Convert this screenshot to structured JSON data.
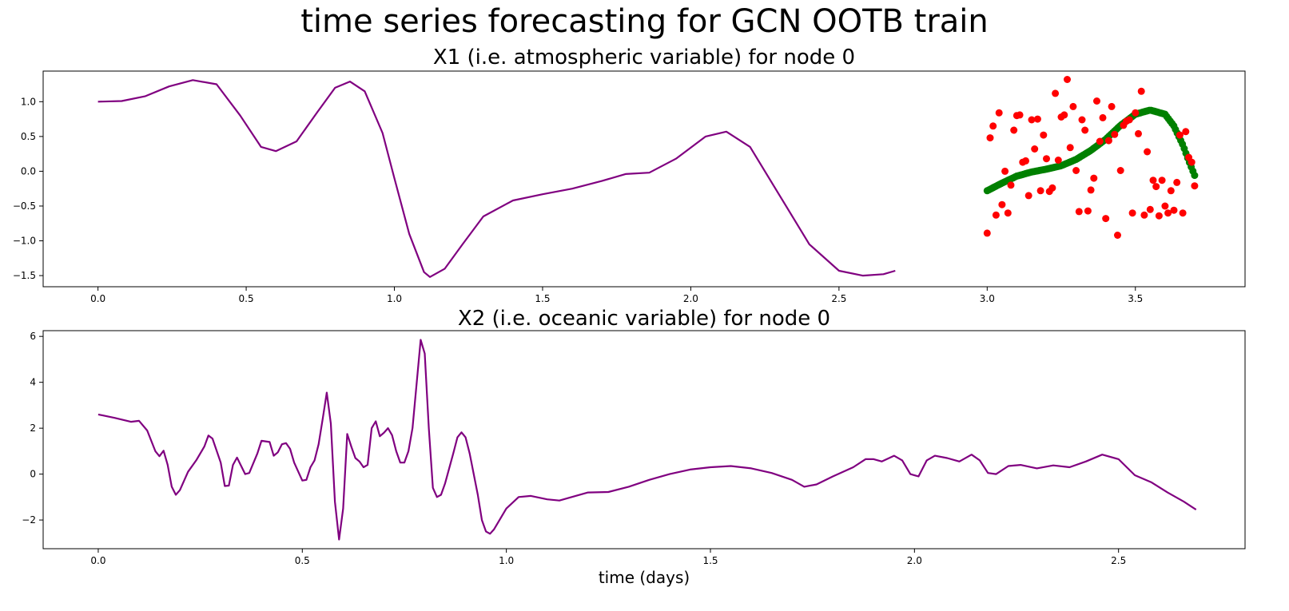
{
  "figure": {
    "title": "time series forecasting for GCN OOTB train"
  },
  "chart_data": [
    {
      "type": "line+scatter",
      "title": "X1 (i.e. atmospheric variable) for node 0",
      "xlabel": "",
      "ylabel": "",
      "xlim": [
        -0.185,
        3.87
      ],
      "ylim": [
        -1.66,
        1.44
      ],
      "xticks": [
        0.0,
        0.5,
        1.0,
        1.5,
        2.0,
        2.5,
        3.0,
        3.5
      ],
      "yticks": [
        -1.5,
        -1.0,
        -0.5,
        0.0,
        0.5,
        1.0
      ],
      "grid": false,
      "colors": {
        "line": "#800080",
        "prediction": "#008000",
        "truth": "#ff0000"
      },
      "line_keypoints": [
        [
          0.0,
          1.0
        ],
        [
          0.08,
          1.01
        ],
        [
          0.16,
          1.08
        ],
        [
          0.24,
          1.22
        ],
        [
          0.32,
          1.31
        ],
        [
          0.4,
          1.25
        ],
        [
          0.48,
          0.8
        ],
        [
          0.55,
          0.35
        ],
        [
          0.6,
          0.29
        ],
        [
          0.67,
          0.43
        ],
        [
          0.74,
          0.85
        ],
        [
          0.8,
          1.2
        ],
        [
          0.85,
          1.29
        ],
        [
          0.9,
          1.15
        ],
        [
          0.96,
          0.55
        ],
        [
          1.0,
          -0.1
        ],
        [
          1.05,
          -0.9
        ],
        [
          1.1,
          -1.45
        ],
        [
          1.12,
          -1.52
        ],
        [
          1.17,
          -1.4
        ],
        [
          1.23,
          -1.05
        ],
        [
          1.3,
          -0.65
        ],
        [
          1.4,
          -0.42
        ],
        [
          1.5,
          -0.33
        ],
        [
          1.6,
          -0.25
        ],
        [
          1.7,
          -0.14
        ],
        [
          1.78,
          -0.04
        ],
        [
          1.86,
          -0.02
        ],
        [
          1.95,
          0.18
        ],
        [
          2.05,
          0.5
        ],
        [
          2.12,
          0.57
        ],
        [
          2.2,
          0.35
        ],
        [
          2.3,
          -0.35
        ],
        [
          2.4,
          -1.05
        ],
        [
          2.5,
          -1.43
        ],
        [
          2.58,
          -1.5
        ],
        [
          2.65,
          -1.48
        ],
        [
          2.69,
          -1.43
        ]
      ],
      "prediction_keypoints": [
        [
          3.0,
          -0.28
        ],
        [
          3.05,
          -0.17
        ],
        [
          3.1,
          -0.07
        ],
        [
          3.15,
          -0.01
        ],
        [
          3.2,
          0.03
        ],
        [
          3.25,
          0.08
        ],
        [
          3.3,
          0.17
        ],
        [
          3.35,
          0.3
        ],
        [
          3.4,
          0.46
        ],
        [
          3.45,
          0.66
        ],
        [
          3.5,
          0.82
        ],
        [
          3.55,
          0.88
        ],
        [
          3.6,
          0.82
        ],
        [
          3.63,
          0.65
        ],
        [
          3.66,
          0.38
        ],
        [
          3.68,
          0.15
        ],
        [
          3.7,
          -0.06
        ]
      ],
      "prediction_points": 120,
      "truth_points": [
        [
          3.0,
          -0.89
        ],
        [
          3.01,
          0.48
        ],
        [
          3.02,
          0.65
        ],
        [
          3.03,
          -0.63
        ],
        [
          3.04,
          0.84
        ],
        [
          3.05,
          -0.48
        ],
        [
          3.06,
          0.0
        ],
        [
          3.07,
          -0.6
        ],
        [
          3.08,
          -0.2
        ],
        [
          3.09,
          0.59
        ],
        [
          3.1,
          0.8
        ],
        [
          3.11,
          0.81
        ],
        [
          3.12,
          0.13
        ],
        [
          3.13,
          0.15
        ],
        [
          3.14,
          -0.35
        ],
        [
          3.15,
          0.74
        ],
        [
          3.16,
          0.32
        ],
        [
          3.17,
          0.75
        ],
        [
          3.18,
          -0.28
        ],
        [
          3.19,
          0.52
        ],
        [
          3.2,
          0.18
        ],
        [
          3.21,
          -0.29
        ],
        [
          3.22,
          -0.24
        ],
        [
          3.23,
          1.12
        ],
        [
          3.24,
          0.16
        ],
        [
          3.25,
          0.78
        ],
        [
          3.26,
          0.81
        ],
        [
          3.27,
          1.32
        ],
        [
          3.28,
          0.34
        ],
        [
          3.29,
          0.93
        ],
        [
          3.3,
          0.01
        ],
        [
          3.31,
          -0.58
        ],
        [
          3.32,
          0.74
        ],
        [
          3.33,
          0.59
        ],
        [
          3.34,
          -0.57
        ],
        [
          3.35,
          -0.27
        ],
        [
          3.36,
          -0.1
        ],
        [
          3.37,
          1.01
        ],
        [
          3.38,
          0.43
        ],
        [
          3.39,
          0.77
        ],
        [
          3.4,
          -0.68
        ],
        [
          3.41,
          0.44
        ],
        [
          3.42,
          0.93
        ],
        [
          3.43,
          0.53
        ],
        [
          3.44,
          -0.92
        ],
        [
          3.45,
          0.01
        ],
        [
          3.46,
          0.66
        ],
        [
          3.47,
          0.72
        ],
        [
          3.48,
          0.74
        ],
        [
          3.49,
          -0.6
        ],
        [
          3.5,
          0.84
        ],
        [
          3.51,
          0.54
        ],
        [
          3.52,
          1.15
        ],
        [
          3.53,
          -0.63
        ],
        [
          3.54,
          0.28
        ],
        [
          3.55,
          -0.55
        ],
        [
          3.56,
          -0.13
        ],
        [
          3.57,
          -0.22
        ],
        [
          3.58,
          -0.64
        ],
        [
          3.59,
          -0.13
        ],
        [
          3.6,
          -0.5
        ],
        [
          3.61,
          -0.6
        ],
        [
          3.62,
          -0.28
        ],
        [
          3.63,
          -0.56
        ],
        [
          3.64,
          -0.16
        ],
        [
          3.65,
          0.52
        ],
        [
          3.66,
          -0.6
        ],
        [
          3.67,
          0.57
        ],
        [
          3.68,
          0.2
        ],
        [
          3.69,
          0.13
        ],
        [
          3.7,
          -0.21
        ]
      ]
    },
    {
      "type": "line",
      "title": "X2 (i.e. oceanic variable) for node 0",
      "xlabel": "time (days)",
      "ylabel": "",
      "xlim": [
        -0.135,
        2.81
      ],
      "ylim": [
        -3.25,
        6.25
      ],
      "xticks": [
        0.0,
        0.5,
        1.0,
        1.5,
        2.0,
        2.5
      ],
      "yticks": [
        -2,
        0,
        2,
        4,
        6
      ],
      "grid": false,
      "colors": {
        "line": "#800080"
      },
      "line_keypoints": [
        [
          0.0,
          2.6
        ],
        [
          0.04,
          2.45
        ],
        [
          0.08,
          2.28
        ],
        [
          0.1,
          2.32
        ],
        [
          0.12,
          1.9
        ],
        [
          0.14,
          1.0
        ],
        [
          0.15,
          0.78
        ],
        [
          0.16,
          1.02
        ],
        [
          0.17,
          0.4
        ],
        [
          0.18,
          -0.55
        ],
        [
          0.19,
          -0.9
        ],
        [
          0.2,
          -0.7
        ],
        [
          0.22,
          0.1
        ],
        [
          0.24,
          0.6
        ],
        [
          0.26,
          1.2
        ],
        [
          0.27,
          1.68
        ],
        [
          0.28,
          1.55
        ],
        [
          0.3,
          0.5
        ],
        [
          0.31,
          -0.52
        ],
        [
          0.32,
          -0.5
        ],
        [
          0.33,
          0.4
        ],
        [
          0.34,
          0.72
        ],
        [
          0.36,
          0.0
        ],
        [
          0.37,
          0.05
        ],
        [
          0.39,
          0.9
        ],
        [
          0.4,
          1.45
        ],
        [
          0.42,
          1.4
        ],
        [
          0.43,
          0.8
        ],
        [
          0.44,
          0.95
        ],
        [
          0.45,
          1.3
        ],
        [
          0.46,
          1.35
        ],
        [
          0.47,
          1.1
        ],
        [
          0.48,
          0.5
        ],
        [
          0.5,
          -0.28
        ],
        [
          0.51,
          -0.25
        ],
        [
          0.52,
          0.3
        ],
        [
          0.53,
          0.6
        ],
        [
          0.54,
          1.3
        ],
        [
          0.55,
          2.4
        ],
        [
          0.56,
          3.55
        ],
        [
          0.57,
          2.2
        ],
        [
          0.58,
          -1.2
        ],
        [
          0.59,
          -2.85
        ],
        [
          0.6,
          -1.5
        ],
        [
          0.61,
          1.75
        ],
        [
          0.62,
          1.2
        ],
        [
          0.63,
          0.7
        ],
        [
          0.64,
          0.55
        ],
        [
          0.65,
          0.3
        ],
        [
          0.66,
          0.4
        ],
        [
          0.67,
          2.0
        ],
        [
          0.68,
          2.3
        ],
        [
          0.69,
          1.65
        ],
        [
          0.7,
          1.8
        ],
        [
          0.71,
          2.0
        ],
        [
          0.72,
          1.7
        ],
        [
          0.73,
          1.0
        ],
        [
          0.74,
          0.5
        ],
        [
          0.75,
          0.5
        ],
        [
          0.76,
          1.0
        ],
        [
          0.77,
          2.0
        ],
        [
          0.79,
          5.85
        ],
        [
          0.8,
          5.25
        ],
        [
          0.81,
          2.0
        ],
        [
          0.82,
          -0.6
        ],
        [
          0.83,
          -1.0
        ],
        [
          0.84,
          -0.9
        ],
        [
          0.85,
          -0.4
        ],
        [
          0.87,
          0.9
        ],
        [
          0.88,
          1.6
        ],
        [
          0.89,
          1.82
        ],
        [
          0.9,
          1.6
        ],
        [
          0.91,
          0.9
        ],
        [
          0.93,
          -0.9
        ],
        [
          0.94,
          -2.0
        ],
        [
          0.95,
          -2.5
        ],
        [
          0.96,
          -2.6
        ],
        [
          0.97,
          -2.4
        ],
        [
          1.0,
          -1.5
        ],
        [
          1.03,
          -1.0
        ],
        [
          1.06,
          -0.95
        ],
        [
          1.1,
          -1.1
        ],
        [
          1.13,
          -1.15
        ],
        [
          1.16,
          -1.0
        ],
        [
          1.2,
          -0.8
        ],
        [
          1.25,
          -0.78
        ],
        [
          1.3,
          -0.55
        ],
        [
          1.35,
          -0.25
        ],
        [
          1.4,
          0.0
        ],
        [
          1.45,
          0.2
        ],
        [
          1.5,
          0.3
        ],
        [
          1.55,
          0.35
        ],
        [
          1.6,
          0.25
        ],
        [
          1.65,
          0.05
        ],
        [
          1.7,
          -0.25
        ],
        [
          1.73,
          -0.55
        ],
        [
          1.76,
          -0.45
        ],
        [
          1.8,
          -0.1
        ],
        [
          1.85,
          0.3
        ],
        [
          1.88,
          0.65
        ],
        [
          1.9,
          0.65
        ],
        [
          1.92,
          0.55
        ],
        [
          1.95,
          0.8
        ],
        [
          1.97,
          0.6
        ],
        [
          1.99,
          0.0
        ],
        [
          2.01,
          -0.1
        ],
        [
          2.03,
          0.6
        ],
        [
          2.05,
          0.8
        ],
        [
          2.08,
          0.7
        ],
        [
          2.11,
          0.55
        ],
        [
          2.14,
          0.85
        ],
        [
          2.16,
          0.6
        ],
        [
          2.18,
          0.05
        ],
        [
          2.2,
          0.0
        ],
        [
          2.23,
          0.35
        ],
        [
          2.26,
          0.4
        ],
        [
          2.3,
          0.25
        ],
        [
          2.34,
          0.38
        ],
        [
          2.38,
          0.3
        ],
        [
          2.42,
          0.55
        ],
        [
          2.46,
          0.85
        ],
        [
          2.5,
          0.65
        ],
        [
          2.54,
          -0.05
        ],
        [
          2.58,
          -0.35
        ],
        [
          2.62,
          -0.8
        ],
        [
          2.66,
          -1.2
        ],
        [
          2.69,
          -1.55
        ]
      ]
    }
  ]
}
